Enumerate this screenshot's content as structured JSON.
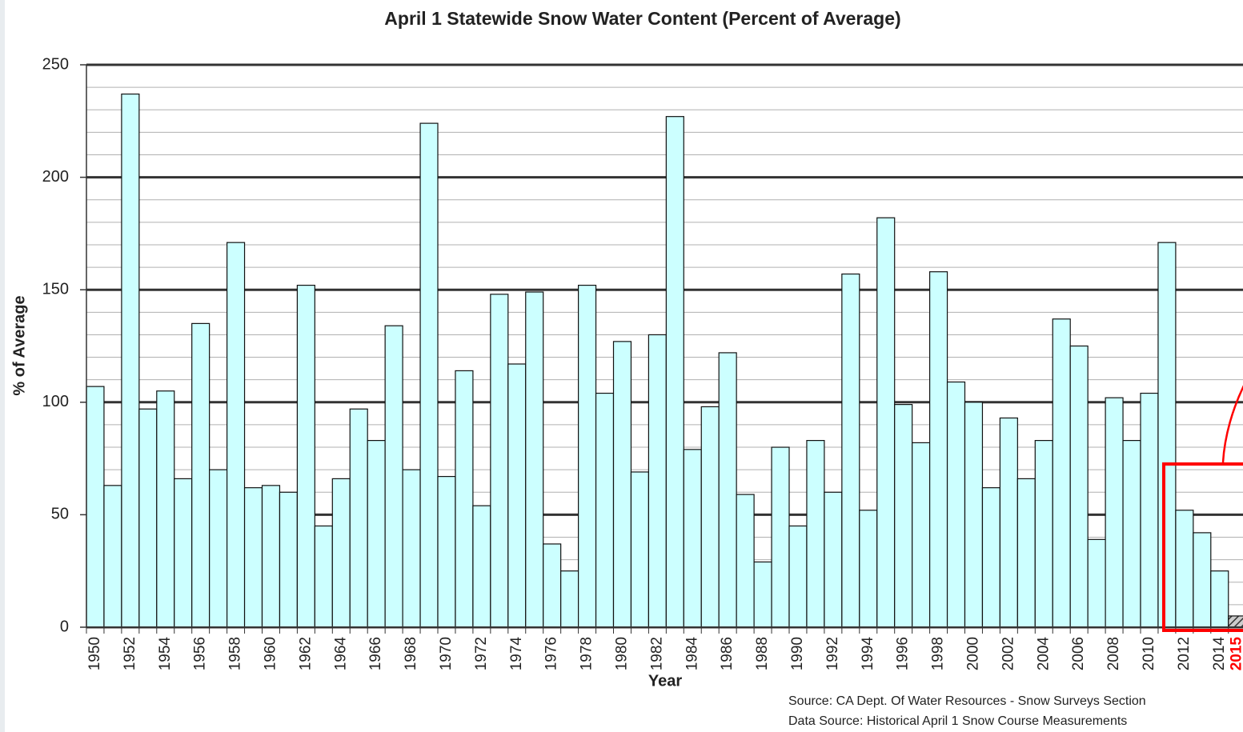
{
  "chart_data": {
    "type": "bar",
    "title": "April 1 Statewide Snow Water Content (Percent of Average)",
    "x_label": "Year",
    "y_label": "% of Average",
    "source_lines": [
      "Source:  CA Dept. Of Water Resources - Snow Surveys Section",
      "Data Source:  Historical April 1 Snow Course Measurements"
    ],
    "categories": [
      "1950",
      null,
      "1952",
      null,
      "1954",
      null,
      "1956",
      null,
      "1958",
      null,
      "1960",
      null,
      "1962",
      null,
      "1964",
      null,
      "1966",
      null,
      "1968",
      null,
      "1970",
      null,
      "1972",
      null,
      "1974",
      null,
      "1976",
      null,
      "1978",
      null,
      "1980",
      null,
      "1982",
      null,
      "1984",
      null,
      "1986",
      null,
      "1988",
      null,
      "1990",
      null,
      "1992",
      null,
      "1994",
      null,
      "1996",
      null,
      "1998",
      null,
      "2000",
      null,
      "2002",
      null,
      "2004",
      null,
      "2006",
      null,
      "2008",
      null,
      "2010",
      null,
      "2012",
      null,
      "2014",
      "2015"
    ],
    "values": [
      107,
      63,
      237,
      97,
      105,
      66,
      135,
      70,
      171,
      62,
      63,
      60,
      152,
      45,
      66,
      97,
      83,
      134,
      70,
      224,
      67,
      114,
      54,
      148,
      117,
      149,
      37,
      25,
      152,
      104,
      127,
      69,
      130,
      227,
      79,
      98,
      122,
      59,
      29,
      80,
      45,
      83,
      60,
      157,
      52,
      182,
      99,
      82,
      158,
      109,
      100,
      62,
      93,
      66,
      83,
      137,
      125,
      39,
      102,
      83,
      104,
      171,
      52,
      42,
      25,
      5
    ],
    "color": "#ccffff",
    "hatched_category": "2015",
    "highlight_label_color": "#ff0000",
    "ylim": [
      0,
      250
    ],
    "yticks": [
      0,
      50,
      100,
      150,
      200,
      250
    ],
    "grid": true,
    "minor_grid_step": 10
  }
}
